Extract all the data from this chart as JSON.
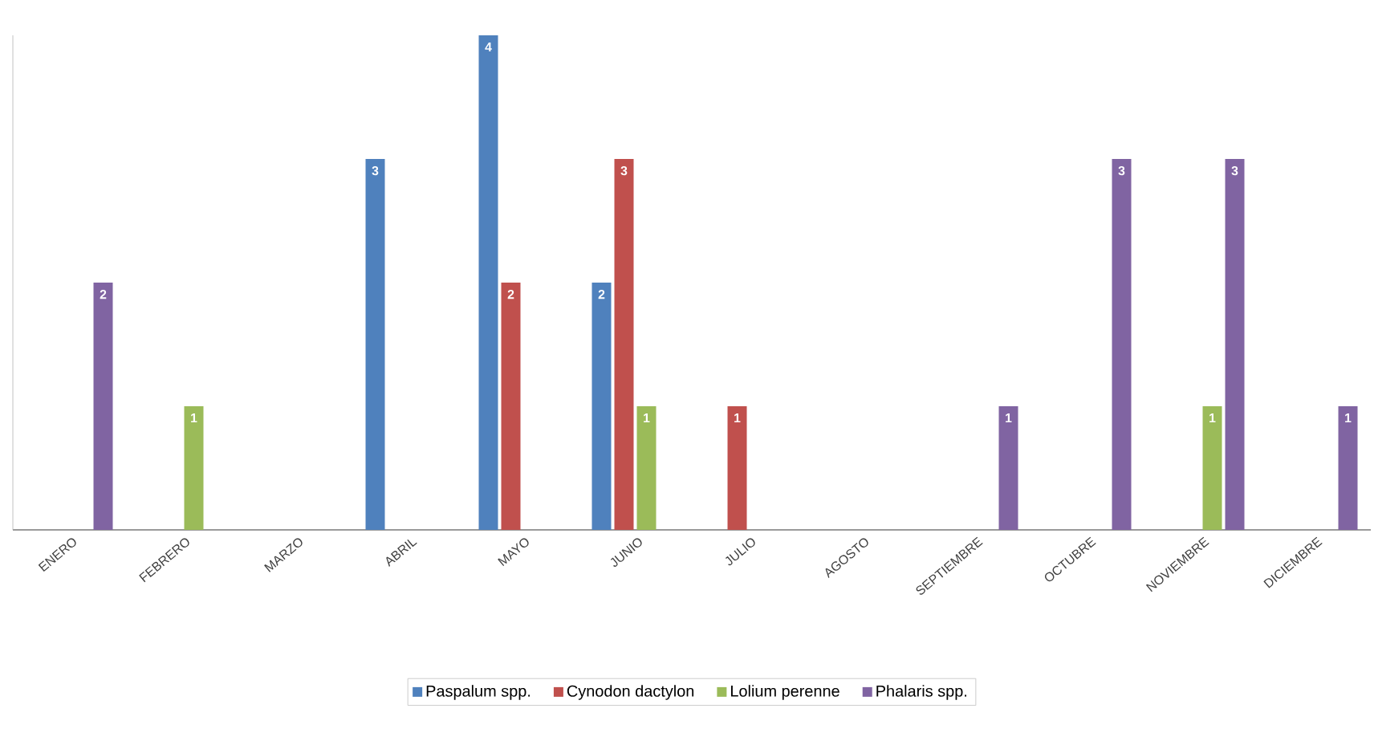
{
  "chart_data": {
    "type": "bar",
    "categories": [
      "ENERO",
      "FEBRERO",
      "MARZO",
      "ABRIL",
      "MAYO",
      "JUNIO",
      "JULIO",
      "AGOSTO",
      "SEPTIEMBRE",
      "OCTUBRE",
      "NOVIEMBRE",
      "DICIEMBRE"
    ],
    "series": [
      {
        "name": "Paspalum spp.",
        "color": "#4f81bd",
        "values": [
          null,
          null,
          null,
          3,
          4,
          2,
          null,
          null,
          null,
          null,
          null,
          null
        ]
      },
      {
        "name": "Cynodon dactylon",
        "color": "#c0504d",
        "values": [
          null,
          null,
          null,
          null,
          2,
          3,
          1,
          null,
          null,
          null,
          null,
          null
        ]
      },
      {
        "name": "Lolium perenne",
        "color": "#9bbb59",
        "values": [
          null,
          1,
          null,
          null,
          null,
          1,
          null,
          null,
          null,
          null,
          1,
          null
        ]
      },
      {
        "name": "Phalaris spp.",
        "color": "#8064a2",
        "values": [
          2,
          null,
          null,
          null,
          null,
          null,
          null,
          null,
          1,
          3,
          3,
          1
        ]
      }
    ],
    "ylim": [
      0,
      4
    ],
    "tick_labels": "x",
    "data_labels": true,
    "legend": "bottom"
  }
}
